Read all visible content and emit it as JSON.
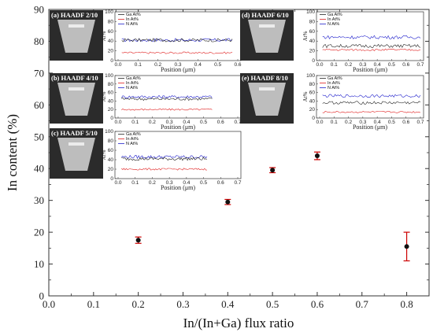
{
  "chart_data": {
    "type": "scatter",
    "xlabel": "In/(In+Ga) flux ratio",
    "ylabel": "In content (%)",
    "xlim": [
      0.0,
      0.85
    ],
    "ylim": [
      0,
      90
    ],
    "x_ticks": [
      "0.0",
      "0.1",
      "0.2",
      "0.3",
      "0.4",
      "0.5",
      "0.6",
      "0.7",
      "0.8"
    ],
    "y_ticks": [
      "0",
      "10",
      "20",
      "30",
      "40",
      "50",
      "60",
      "70",
      "80",
      "90"
    ],
    "points": [
      {
        "x": 0.2,
        "y": 17.5,
        "err": 1.0
      },
      {
        "x": 0.4,
        "y": 29.5,
        "err": 0.8
      },
      {
        "x": 0.5,
        "y": 39.5,
        "err": 0.8
      },
      {
        "x": 0.6,
        "y": 44.0,
        "err": 1.2
      },
      {
        "x": 0.8,
        "y": 15.5,
        "err": 4.5
      }
    ],
    "colors": {
      "marker": "#111111",
      "errorbar": "#cc0000",
      "ga": "#222222",
      "in": "#e02020",
      "n": "#2020cc"
    },
    "insets": [
      {
        "label": "(a) HAADF 2/10",
        "ticks_y": [
          "100",
          "80",
          "60",
          "40",
          "20",
          "0"
        ],
        "ticks_x": [
          "0.0",
          "0.1",
          "0.2",
          "0.3",
          "0.4",
          "0.5",
          "0.6"
        ],
        "xlabel": "Position (μm)",
        "ylabel": "At%",
        "legend": [
          "Ga At%",
          "In At%",
          "N At%"
        ]
      },
      {
        "label": "(b) HAADF 4/10",
        "ticks_y": [
          "100",
          "80",
          "60",
          "40",
          "20",
          "0"
        ],
        "ticks_x": [
          "0.0",
          "0.1",
          "0.2",
          "0.3",
          "0.4",
          "0.5",
          "0.6",
          "0.7"
        ],
        "xlabel": "Position (μm)",
        "ylabel": "At%",
        "legend": [
          "Ga At%",
          "In At%",
          "N At%"
        ]
      },
      {
        "label": "(c) HAADF 5/10",
        "ticks_y": [
          "100",
          "80",
          "60",
          "40",
          "20",
          "0"
        ],
        "ticks_x": [
          "0.0",
          "0.1",
          "0.2",
          "0.3",
          "0.4",
          "0.5",
          "0.6",
          "0.7"
        ],
        "xlabel": "Position (μm)",
        "ylabel": "At%",
        "legend": [
          "Ga At%",
          "In At%",
          "N At%"
        ]
      },
      {
        "label": "(d) HAADF 6/10",
        "ticks_y": [
          "100",
          "80",
          "60",
          "40",
          "20",
          "0"
        ],
        "ticks_x": [
          "0.0",
          "0.1",
          "0.2",
          "0.3",
          "0.4",
          "0.5",
          "0.6",
          "0.7"
        ],
        "xlabel": "Position (μm)",
        "ylabel": "At%",
        "legend": [
          "Ga At%",
          "In At%",
          "N At%"
        ]
      },
      {
        "label": "(e) HAADF 8/10",
        "ticks_y": [
          "100",
          "80",
          "60",
          "40",
          "20",
          "0"
        ],
        "ticks_x": [
          "0.0",
          "0.1",
          "0.2",
          "0.3",
          "0.4",
          "0.5",
          "0.6",
          "0.7"
        ],
        "xlabel": "Position (μm)",
        "ylabel": "At%",
        "legend": [
          "Ga At%",
          "In At%",
          "N At%"
        ]
      }
    ]
  }
}
